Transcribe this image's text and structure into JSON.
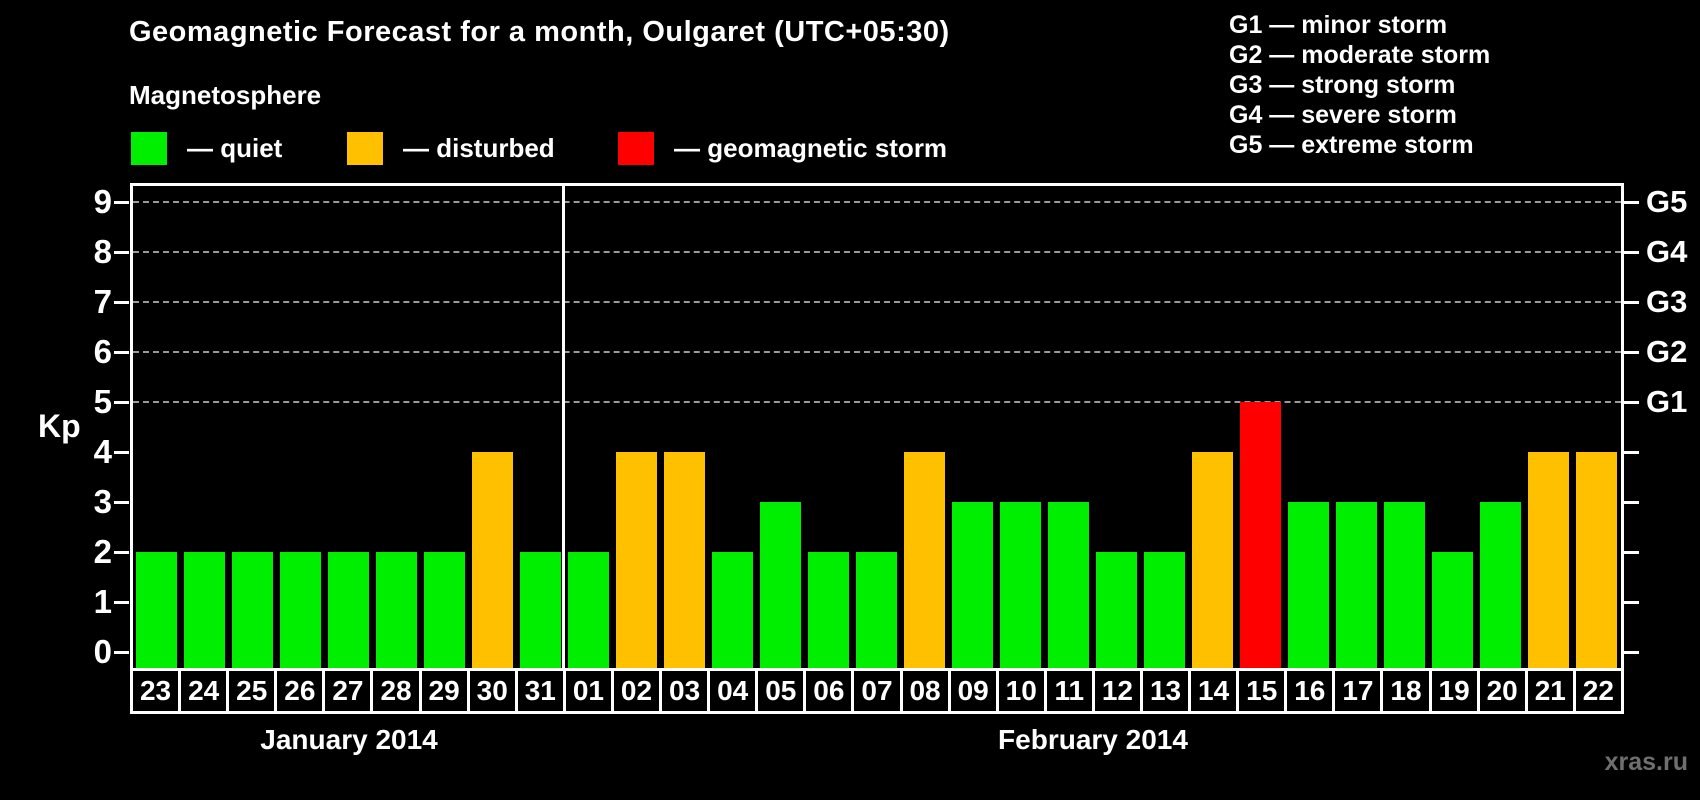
{
  "title": "Geomagnetic Forecast for a month, Oulgaret (UTC+05:30)",
  "watermark": "xras.ru",
  "legend": {
    "heading": "Magnetosphere",
    "items": [
      {
        "name": "quiet",
        "label": "— quiet",
        "color": "#00ee00"
      },
      {
        "name": "disturbed",
        "label": "— disturbed",
        "color": "#ffc000"
      },
      {
        "name": "storm",
        "label": "— geomagnetic storm",
        "color": "#ff0000"
      }
    ]
  },
  "g_scale_legend": [
    "G1 — minor storm",
    "G2 — moderate storm",
    "G3 — strong storm",
    "G4 — severe storm",
    "G5 — extreme storm"
  ],
  "chart_data": {
    "type": "bar",
    "ylabel": "Kp",
    "ylim": [
      0,
      9.4
    ],
    "y_ticks": [
      0,
      1,
      2,
      3,
      4,
      5,
      6,
      7,
      8,
      9
    ],
    "gridlines_kp": [
      5,
      6,
      7,
      8,
      9
    ],
    "right_axis": [
      {
        "kp": 5,
        "label": "G1"
      },
      {
        "kp": 6,
        "label": "G2"
      },
      {
        "kp": 7,
        "label": "G3"
      },
      {
        "kp": 8,
        "label": "G4"
      },
      {
        "kp": 9,
        "label": "G5"
      }
    ],
    "status_colors": {
      "quiet": "#00ee00",
      "disturbed": "#ffc000",
      "storm": "#ff0000"
    },
    "months": [
      {
        "label": "January 2014",
        "days": [
          {
            "day": "23",
            "kp": 2,
            "status": "quiet"
          },
          {
            "day": "24",
            "kp": 2,
            "status": "quiet"
          },
          {
            "day": "25",
            "kp": 2,
            "status": "quiet"
          },
          {
            "day": "26",
            "kp": 2,
            "status": "quiet"
          },
          {
            "day": "27",
            "kp": 2,
            "status": "quiet"
          },
          {
            "day": "28",
            "kp": 2,
            "status": "quiet"
          },
          {
            "day": "29",
            "kp": 2,
            "status": "quiet"
          },
          {
            "day": "30",
            "kp": 4,
            "status": "disturbed"
          },
          {
            "day": "31",
            "kp": 2,
            "status": "quiet"
          }
        ]
      },
      {
        "label": "February 2014",
        "days": [
          {
            "day": "01",
            "kp": 2,
            "status": "quiet"
          },
          {
            "day": "02",
            "kp": 4,
            "status": "disturbed"
          },
          {
            "day": "03",
            "kp": 4,
            "status": "disturbed"
          },
          {
            "day": "04",
            "kp": 2,
            "status": "quiet"
          },
          {
            "day": "05",
            "kp": 3,
            "status": "quiet"
          },
          {
            "day": "06",
            "kp": 2,
            "status": "quiet"
          },
          {
            "day": "07",
            "kp": 2,
            "status": "quiet"
          },
          {
            "day": "08",
            "kp": 4,
            "status": "disturbed"
          },
          {
            "day": "09",
            "kp": 3,
            "status": "quiet"
          },
          {
            "day": "10",
            "kp": 3,
            "status": "quiet"
          },
          {
            "day": "11",
            "kp": 3,
            "status": "quiet"
          },
          {
            "day": "12",
            "kp": 2,
            "status": "quiet"
          },
          {
            "day": "13",
            "kp": 2,
            "status": "quiet"
          },
          {
            "day": "14",
            "kp": 4,
            "status": "disturbed"
          },
          {
            "day": "15",
            "kp": 5,
            "status": "storm"
          },
          {
            "day": "16",
            "kp": 3,
            "status": "quiet"
          },
          {
            "day": "17",
            "kp": 3,
            "status": "quiet"
          },
          {
            "day": "18",
            "kp": 3,
            "status": "quiet"
          },
          {
            "day": "19",
            "kp": 2,
            "status": "quiet"
          },
          {
            "day": "20",
            "kp": 3,
            "status": "quiet"
          },
          {
            "day": "21",
            "kp": 4,
            "status": "disturbed"
          },
          {
            "day": "22",
            "kp": 4,
            "status": "disturbed"
          }
        ]
      }
    ]
  }
}
